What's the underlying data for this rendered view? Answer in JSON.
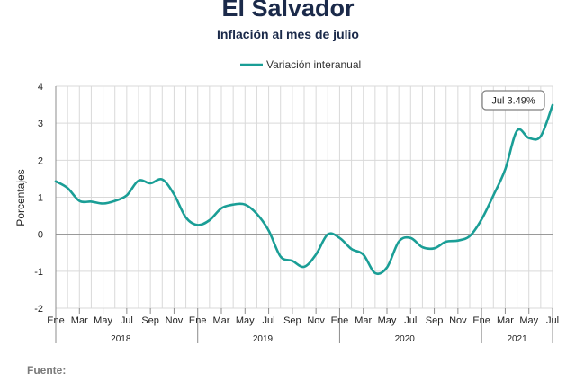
{
  "header": {
    "title": "El Salvador",
    "subtitle": "Inflación al mes de julio"
  },
  "footer": {
    "source_label": "Fuente:"
  },
  "colors": {
    "line": "#1a9e96",
    "grid": "#d9d9d9",
    "axis": "#8c8c8c"
  },
  "chart_data": {
    "type": "line",
    "title": "El Salvador",
    "subtitle": "Inflación al mes de julio",
    "xlabel": "",
    "ylabel": "Porcentajes",
    "ylim": [
      -2,
      4
    ],
    "yticks": [
      -2,
      -1,
      0,
      1,
      2,
      3,
      4
    ],
    "grid": true,
    "legend_position": "top-center",
    "month_labels": [
      "Ene",
      "Mar",
      "May",
      "Jul",
      "Sep",
      "Nov",
      "Ene",
      "Mar",
      "May",
      "Jul",
      "Sep",
      "Nov",
      "Ene",
      "Mar",
      "May",
      "Jul",
      "Sep",
      "Nov",
      "Ene",
      "Mar",
      "May",
      "Jul"
    ],
    "year_labels": [
      "2018",
      "2019",
      "2020",
      "2021"
    ],
    "x": [
      "2018-01",
      "2018-02",
      "2018-03",
      "2018-04",
      "2018-05",
      "2018-06",
      "2018-07",
      "2018-08",
      "2018-09",
      "2018-10",
      "2018-11",
      "2018-12",
      "2019-01",
      "2019-02",
      "2019-03",
      "2019-04",
      "2019-05",
      "2019-06",
      "2019-07",
      "2019-08",
      "2019-09",
      "2019-10",
      "2019-11",
      "2019-12",
      "2020-01",
      "2020-02",
      "2020-03",
      "2020-04",
      "2020-05",
      "2020-06",
      "2020-07",
      "2020-08",
      "2020-09",
      "2020-10",
      "2020-11",
      "2020-12",
      "2021-01",
      "2021-02",
      "2021-03",
      "2021-04",
      "2021-05",
      "2021-06",
      "2021-07"
    ],
    "series": [
      {
        "name": "Variación interanual",
        "values": [
          1.43,
          1.25,
          0.9,
          0.88,
          0.83,
          0.9,
          1.05,
          1.45,
          1.38,
          1.48,
          1.08,
          0.45,
          0.25,
          0.38,
          0.7,
          0.8,
          0.8,
          0.55,
          0.1,
          -0.6,
          -0.72,
          -0.88,
          -0.55,
          0.0,
          -0.1,
          -0.4,
          -0.55,
          -1.05,
          -0.9,
          -0.2,
          -0.1,
          -0.35,
          -0.38,
          -0.2,
          -0.17,
          -0.05,
          0.4,
          1.05,
          1.75,
          2.8,
          2.6,
          2.65,
          3.49
        ]
      }
    ],
    "annotations": [
      {
        "label": "Jul 3.49%",
        "x": "2021-07",
        "y": 3.49
      }
    ]
  }
}
